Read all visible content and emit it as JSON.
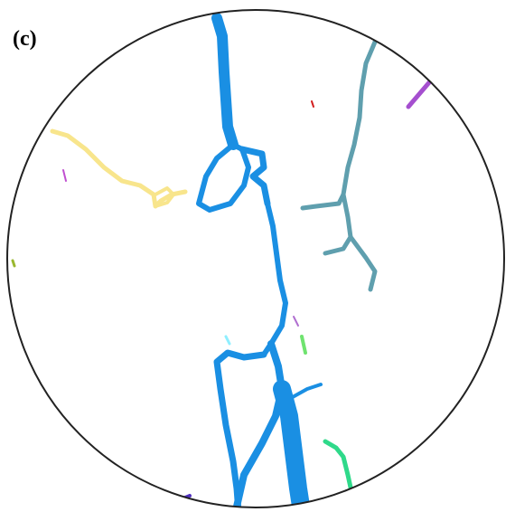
{
  "panel_label": "(c)"
}
